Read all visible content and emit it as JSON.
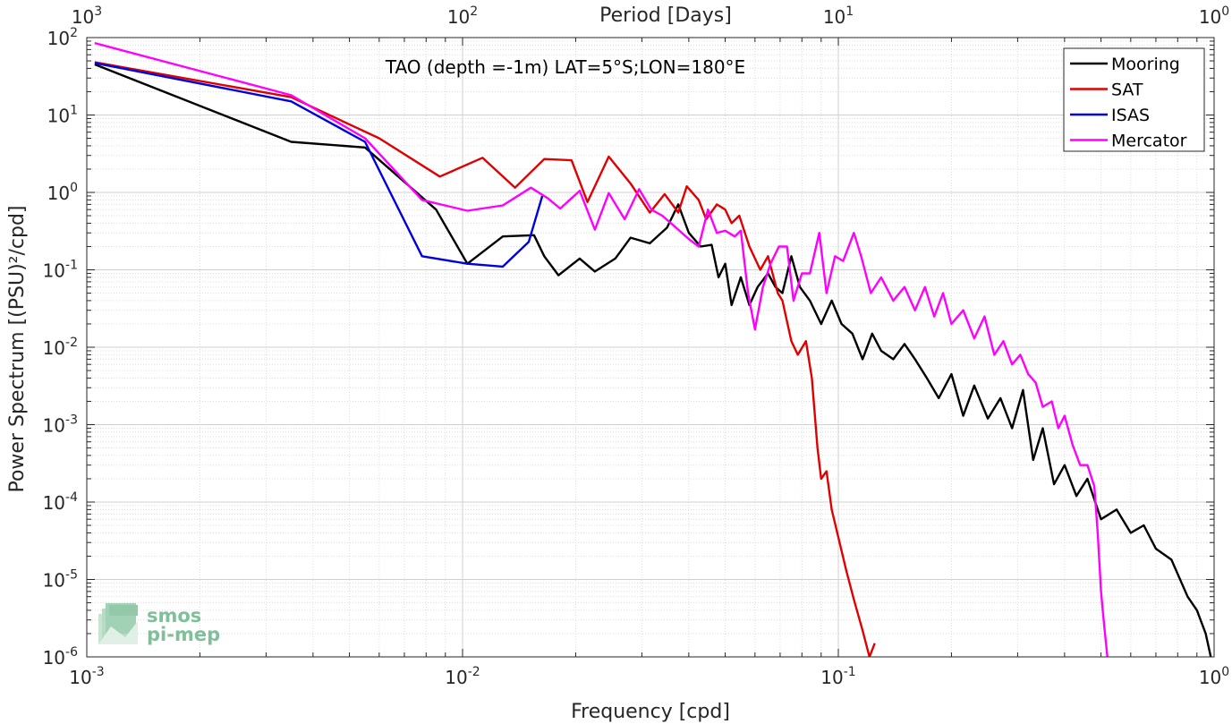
{
  "chart_data": {
    "type": "line",
    "title": "TAO (depth =-1m) LAT=5°S;LON=180°E",
    "xlabel": "Frequency [cpd]",
    "ylabel": "Power Spectrum [(PSU)²/cpd]",
    "top_xlabel": "Period [Days]",
    "x_scale": "log",
    "y_scale": "log",
    "xlim": [
      0.001,
      1
    ],
    "ylim": [
      1e-06,
      100
    ],
    "x_ticks": [
      {
        "base": "10",
        "exp": "-3"
      },
      {
        "base": "10",
        "exp": "-2"
      },
      {
        "base": "10",
        "exp": "-1"
      },
      {
        "base": "10",
        "exp": "0"
      }
    ],
    "top_ticks": [
      {
        "base": "10",
        "exp": "3"
      },
      {
        "base": "10",
        "exp": "2"
      },
      {
        "base": "10",
        "exp": "1"
      },
      {
        "base": "10",
        "exp": "0"
      }
    ],
    "y_ticks": [
      {
        "base": "10",
        "exp": "-6"
      },
      {
        "base": "10",
        "exp": "-5"
      },
      {
        "base": "10",
        "exp": "-4"
      },
      {
        "base": "10",
        "exp": "-3"
      },
      {
        "base": "10",
        "exp": "-2"
      },
      {
        "base": "10",
        "exp": "-1"
      },
      {
        "base": "10",
        "exp": "0"
      },
      {
        "base": "10",
        "exp": "1"
      },
      {
        "base": "10",
        "exp": "2"
      }
    ],
    "grid": true,
    "legend_position": "top-right",
    "series": [
      {
        "name": "Mooring",
        "color": "#000000",
        "points": [
          [
            0.00105,
            45
          ],
          [
            0.0035,
            4.5
          ],
          [
            0.0055,
            3.8
          ],
          [
            0.0085,
            0.6
          ],
          [
            0.0103,
            0.12
          ],
          [
            0.0128,
            0.27
          ],
          [
            0.0155,
            0.28
          ],
          [
            0.0165,
            0.15
          ],
          [
            0.018,
            0.085
          ],
          [
            0.0205,
            0.14
          ],
          [
            0.0225,
            0.095
          ],
          [
            0.0255,
            0.14
          ],
          [
            0.028,
            0.26
          ],
          [
            0.0315,
            0.22
          ],
          [
            0.035,
            0.35
          ],
          [
            0.0375,
            0.7
          ],
          [
            0.04,
            0.3
          ],
          [
            0.043,
            0.2
          ],
          [
            0.046,
            0.21
          ],
          [
            0.048,
            0.08
          ],
          [
            0.05,
            0.12
          ],
          [
            0.052,
            0.035
          ],
          [
            0.055,
            0.08
          ],
          [
            0.058,
            0.035
          ],
          [
            0.061,
            0.06
          ],
          [
            0.065,
            0.09
          ],
          [
            0.068,
            0.06
          ],
          [
            0.071,
            0.05
          ],
          [
            0.075,
            0.15
          ],
          [
            0.079,
            0.06
          ],
          [
            0.084,
            0.04
          ],
          [
            0.09,
            0.02
          ],
          [
            0.096,
            0.04
          ],
          [
            0.102,
            0.02
          ],
          [
            0.109,
            0.015
          ],
          [
            0.116,
            0.007
          ],
          [
            0.123,
            0.015
          ],
          [
            0.13,
            0.009
          ],
          [
            0.14,
            0.007
          ],
          [
            0.15,
            0.011
          ],
          [
            0.16,
            0.007
          ],
          [
            0.172,
            0.004
          ],
          [
            0.185,
            0.0022
          ],
          [
            0.2,
            0.0045
          ],
          [
            0.215,
            0.0013
          ],
          [
            0.23,
            0.0032
          ],
          [
            0.25,
            0.0012
          ],
          [
            0.27,
            0.0022
          ],
          [
            0.29,
            0.0009
          ],
          [
            0.31,
            0.0028
          ],
          [
            0.33,
            0.00035
          ],
          [
            0.35,
            0.0009
          ],
          [
            0.375,
            0.00017
          ],
          [
            0.4,
            0.0003
          ],
          [
            0.43,
            0.00012
          ],
          [
            0.46,
            0.0002
          ],
          [
            0.5,
            6e-05
          ],
          [
            0.55,
            8e-05
          ],
          [
            0.6,
            4e-05
          ],
          [
            0.65,
            5e-05
          ],
          [
            0.7,
            2.5e-05
          ],
          [
            0.77,
            1.8e-05
          ],
          [
            0.85,
            6e-06
          ],
          [
            0.9,
            4e-06
          ],
          [
            0.95,
            2e-06
          ],
          [
            0.98,
            1e-06
          ]
        ]
      },
      {
        "name": "SAT",
        "color": "#e00000",
        "points": [
          [
            0.00105,
            48
          ],
          [
            0.0035,
            17
          ],
          [
            0.006,
            5
          ],
          [
            0.0087,
            1.6
          ],
          [
            0.0113,
            2.8
          ],
          [
            0.0138,
            1.15
          ],
          [
            0.0165,
            2.7
          ],
          [
            0.0195,
            2.6
          ],
          [
            0.0215,
            0.75
          ],
          [
            0.0245,
            2.9
          ],
          [
            0.028,
            1.3
          ],
          [
            0.0315,
            0.55
          ],
          [
            0.0345,
            0.95
          ],
          [
            0.0375,
            0.55
          ],
          [
            0.0395,
            1.2
          ],
          [
            0.0425,
            0.8
          ],
          [
            0.0445,
            0.45
          ],
          [
            0.0475,
            0.7
          ],
          [
            0.05,
            0.6
          ],
          [
            0.052,
            0.4
          ],
          [
            0.0545,
            0.5
          ],
          [
            0.058,
            0.2
          ],
          [
            0.062,
            0.1
          ],
          [
            0.065,
            0.15
          ],
          [
            0.069,
            0.05
          ],
          [
            0.071,
            0.04
          ],
          [
            0.075,
            0.012
          ],
          [
            0.078,
            0.008
          ],
          [
            0.082,
            0.012
          ],
          [
            0.085,
            0.004
          ],
          [
            0.088,
            0.0005
          ],
          [
            0.09,
            0.0002
          ],
          [
            0.093,
            0.00025
          ],
          [
            0.096,
            8e-05
          ],
          [
            0.1,
            3.5e-05
          ],
          [
            0.105,
            1.3e-05
          ],
          [
            0.11,
            5.5e-06
          ],
          [
            0.116,
            2.2e-06
          ],
          [
            0.121,
            1e-06
          ],
          [
            0.125,
            1.5e-06
          ]
        ]
      },
      {
        "name": "ISAS",
        "color": "#0000e0",
        "points": [
          [
            0.00105,
            47
          ],
          [
            0.0035,
            15
          ],
          [
            0.0055,
            4.5
          ],
          [
            0.0078,
            0.15
          ],
          [
            0.0103,
            0.12
          ],
          [
            0.0128,
            0.11
          ],
          [
            0.015,
            0.23
          ],
          [
            0.0163,
            0.9
          ]
        ]
      },
      {
        "name": "Mercator",
        "color": "#ff00ff",
        "points": [
          [
            0.00105,
            85
          ],
          [
            0.0035,
            18
          ],
          [
            0.0055,
            5
          ],
          [
            0.0078,
            0.8
          ],
          [
            0.0103,
            0.58
          ],
          [
            0.0128,
            0.68
          ],
          [
            0.0152,
            1.15
          ],
          [
            0.0168,
            0.85
          ],
          [
            0.0182,
            0.62
          ],
          [
            0.0205,
            1.05
          ],
          [
            0.0225,
            0.33
          ],
          [
            0.0245,
            0.98
          ],
          [
            0.027,
            0.45
          ],
          [
            0.0295,
            1.1
          ],
          [
            0.0318,
            0.6
          ],
          [
            0.034,
            0.5
          ],
          [
            0.037,
            0.35
          ],
          [
            0.04,
            0.25
          ],
          [
            0.0425,
            0.2
          ],
          [
            0.045,
            0.6
          ],
          [
            0.0475,
            0.3
          ],
          [
            0.05,
            0.32
          ],
          [
            0.053,
            0.27
          ],
          [
            0.055,
            0.32
          ],
          [
            0.0575,
            0.05
          ],
          [
            0.06,
            0.017
          ],
          [
            0.063,
            0.06
          ],
          [
            0.066,
            0.12
          ],
          [
            0.0695,
            0.2
          ],
          [
            0.073,
            0.2
          ],
          [
            0.076,
            0.04
          ],
          [
            0.08,
            0.09
          ],
          [
            0.084,
            0.09
          ],
          [
            0.089,
            0.3
          ],
          [
            0.093,
            0.05
          ],
          [
            0.098,
            0.15
          ],
          [
            0.103,
            0.13
          ],
          [
            0.11,
            0.3
          ],
          [
            0.115,
            0.15
          ],
          [
            0.122,
            0.05
          ],
          [
            0.13,
            0.08
          ],
          [
            0.14,
            0.04
          ],
          [
            0.15,
            0.06
          ],
          [
            0.16,
            0.03
          ],
          [
            0.17,
            0.06
          ],
          [
            0.18,
            0.025
          ],
          [
            0.19,
            0.05
          ],
          [
            0.2,
            0.02
          ],
          [
            0.215,
            0.03
          ],
          [
            0.23,
            0.013
          ],
          [
            0.245,
            0.025
          ],
          [
            0.26,
            0.008
          ],
          [
            0.275,
            0.012
          ],
          [
            0.29,
            0.006
          ],
          [
            0.305,
            0.008
          ],
          [
            0.32,
            0.0045
          ],
          [
            0.335,
            0.0035
          ],
          [
            0.35,
            0.0017
          ],
          [
            0.37,
            0.002
          ],
          [
            0.385,
            0.0009
          ],
          [
            0.4,
            0.0013
          ],
          [
            0.42,
            0.00055
          ],
          [
            0.44,
            0.0003
          ],
          [
            0.46,
            0.0003
          ],
          [
            0.48,
            0.00016
          ],
          [
            0.49,
            4e-05
          ],
          [
            0.5,
            7e-06
          ],
          [
            0.51,
            2.5e-06
          ],
          [
            0.52,
            1e-06
          ]
        ]
      }
    ]
  }
}
